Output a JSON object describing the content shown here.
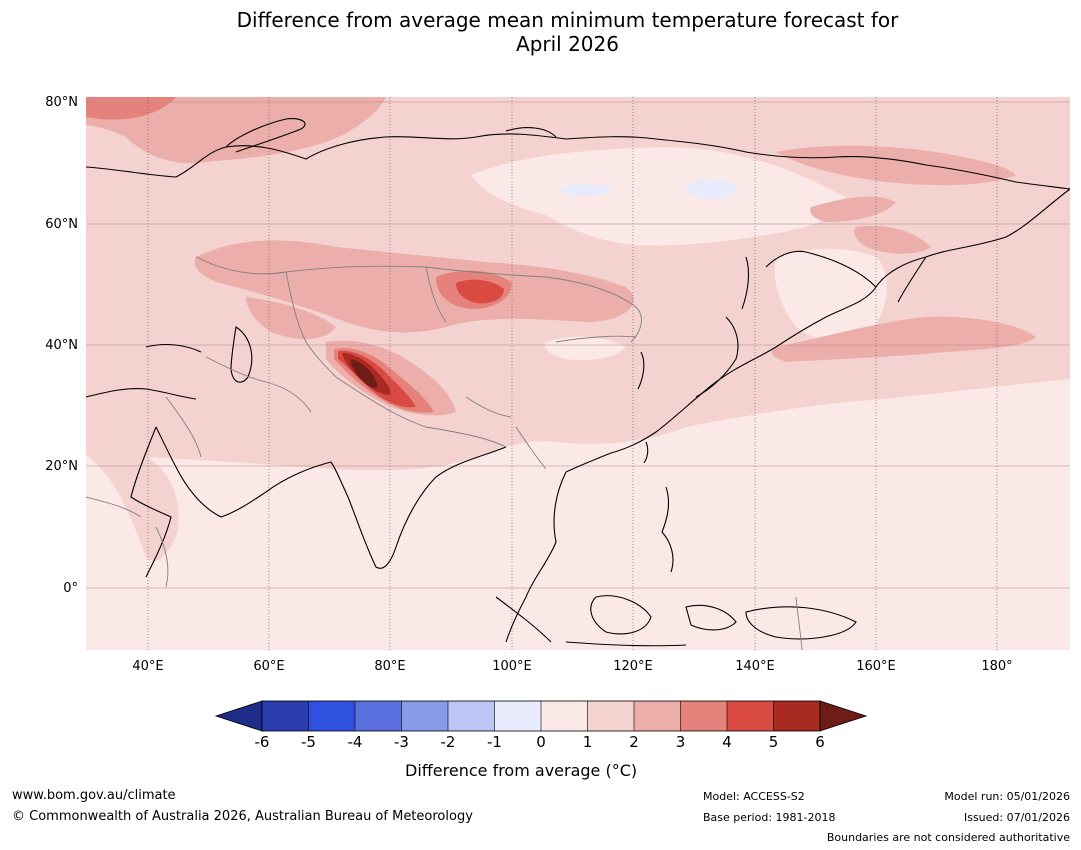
{
  "title": {
    "line1": "Difference from average mean minimum temperature forecast for",
    "line2": "April 2026"
  },
  "map": {
    "projection": "equirectangular",
    "lon_range": [
      30,
      192
    ],
    "lat_range": [
      -10,
      80
    ],
    "lat_labels": [
      "80°N",
      "60°N",
      "40°N",
      "20°N",
      "0°"
    ],
    "lon_labels": [
      "40°E",
      "60°E",
      "80°E",
      "100°E",
      "120°E",
      "140°E",
      "160°E",
      "180°"
    ],
    "anomaly_regions": [
      {
        "name": "arctic-west",
        "level": "3 to 4"
      },
      {
        "name": "arctic-ocean-band",
        "level": "2 to 3"
      },
      {
        "name": "tibet-plateau",
        "level": "above 6"
      },
      {
        "name": "mongolia",
        "level": "4 to 5"
      },
      {
        "name": "siberia-central",
        "level": "0 to 1"
      },
      {
        "name": "north-pacific",
        "level": "2 to 3"
      },
      {
        "name": "south-tropics",
        "level": "0 to 1"
      }
    ]
  },
  "colorbar": {
    "label": "Difference from average (°C)",
    "label_prefix": "Difference from average (",
    "label_unit": "°C",
    "label_suffix": ")",
    "ticks": [
      "-6",
      "-5",
      "-4",
      "-3",
      "-2",
      "-1",
      "0",
      "1",
      "2",
      "3",
      "4",
      "5",
      "6"
    ],
    "colors": [
      "#1f2d8a",
      "#2b3db0",
      "#3050e0",
      "#5a6fe0",
      "#8899ea",
      "#bcc5f4",
      "#e8ebfb",
      "#fbe9e8",
      "#f4d2d0",
      "#ecaeaa",
      "#e5827c",
      "#d84a42",
      "#a82a22",
      "#6e1c16"
    ]
  },
  "footer": {
    "website": "www.bom.gov.au/climate",
    "copyright": "© Commonwealth of Australia 2026, Australian Bureau of Meteorology",
    "model": "Model: ACCESS-S2",
    "base_period": "Base period: 1981-2018",
    "model_run": "Model run: 05/01/2026",
    "issued": "Issued: 07/01/2026",
    "disclaimer": "Boundaries are not considered authoritative"
  }
}
